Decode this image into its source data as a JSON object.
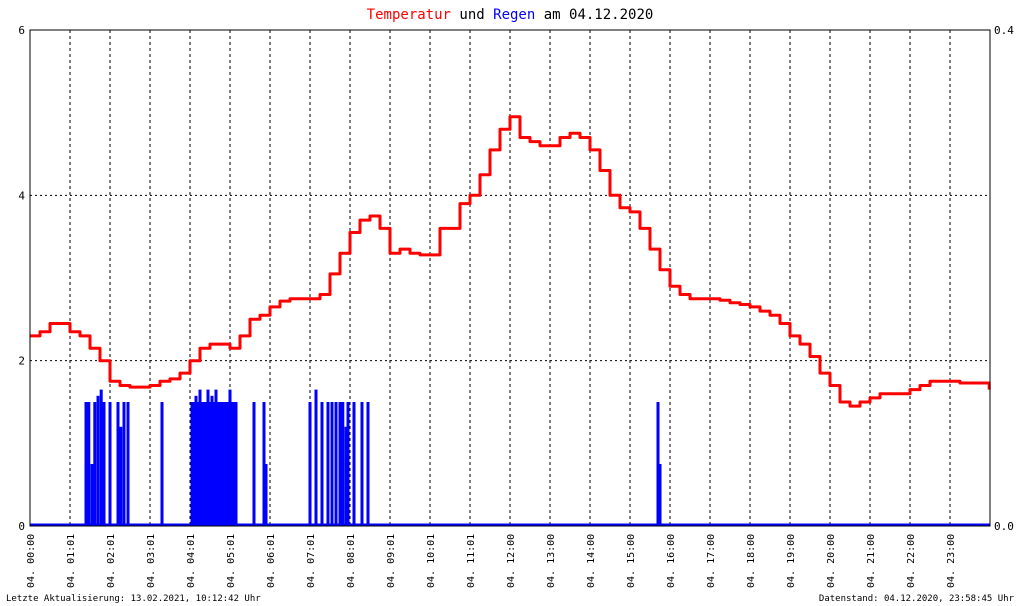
{
  "header": {
    "title_part1": "Temperatur",
    "title_part2": "und",
    "title_part3": "Regen",
    "title_part4": "am 04.12.2020",
    "color_temperature": "#ff0000",
    "color_rain": "#0000ff"
  },
  "footer": {
    "left": "Letzte Aktualisierung: 13.02.2021, 10:12:42 Uhr",
    "right": "Datenstand: 04.12.2020, 23:58:45 Uhr"
  },
  "chart_data": {
    "type": "line",
    "title": "Temperatur und Regen am 04.12.2020",
    "grid": true,
    "x_range": [
      0,
      24
    ],
    "x_tick_labels": [
      "04. 00:00",
      "04. 01:01",
      "04. 02:01",
      "04. 03:01",
      "04. 04:01",
      "04. 05:01",
      "04. 06:01",
      "04. 07:01",
      "04. 08:01",
      "04. 09:01",
      "04. 10:01",
      "04. 11:01",
      "04. 12:00",
      "04. 13:00",
      "04. 14:00",
      "04. 15:00",
      "04. 16:00",
      "04. 17:00",
      "04. 18:00",
      "04. 19:00",
      "04. 20:00",
      "04. 21:00",
      "04. 22:00",
      "04. 23:00"
    ],
    "y_left": {
      "range": [
        0,
        6
      ],
      "tick_labels": [
        "0",
        "2",
        "4",
        "6"
      ]
    },
    "y_right": {
      "range": [
        0,
        0.4
      ],
      "tick_labels": [
        "0.0",
        "0.4"
      ]
    },
    "series": [
      {
        "name": "Temperatur",
        "color": "#ff0000",
        "axis": "left",
        "x": [
          0.0,
          0.25,
          0.5,
          0.75,
          1.0,
          1.25,
          1.5,
          1.75,
          2.0,
          2.25,
          2.5,
          2.75,
          3.0,
          3.25,
          3.5,
          3.75,
          4.0,
          4.25,
          4.5,
          4.75,
          5.0,
          5.25,
          5.5,
          5.75,
          6.0,
          6.25,
          6.5,
          6.75,
          7.0,
          7.25,
          7.5,
          7.75,
          8.0,
          8.25,
          8.5,
          8.75,
          9.0,
          9.25,
          9.5,
          9.75,
          10.0,
          10.25,
          10.5,
          10.75,
          11.0,
          11.25,
          11.5,
          11.75,
          12.0,
          12.25,
          12.5,
          12.75,
          13.0,
          13.25,
          13.5,
          13.75,
          14.0,
          14.25,
          14.5,
          14.75,
          15.0,
          15.25,
          15.5,
          15.75,
          16.0,
          16.25,
          16.5,
          16.75,
          17.0,
          17.25,
          17.5,
          17.75,
          18.0,
          18.25,
          18.5,
          18.75,
          19.0,
          19.25,
          19.5,
          19.75,
          20.0,
          20.25,
          20.5,
          20.75,
          21.0,
          21.25,
          21.5,
          21.75,
          22.0,
          22.25,
          22.5,
          22.75,
          23.0,
          23.25,
          23.5,
          23.75,
          23.98
        ],
        "values": [
          2.3,
          2.35,
          2.45,
          2.45,
          2.35,
          2.3,
          2.15,
          2.0,
          1.75,
          1.7,
          1.68,
          1.68,
          1.7,
          1.75,
          1.78,
          1.85,
          2.0,
          2.15,
          2.2,
          2.2,
          2.15,
          2.3,
          2.5,
          2.55,
          2.65,
          2.72,
          2.75,
          2.75,
          2.75,
          2.8,
          3.05,
          3.3,
          3.55,
          3.7,
          3.75,
          3.6,
          3.3,
          3.35,
          3.3,
          3.28,
          3.28,
          3.6,
          3.6,
          3.9,
          4.0,
          4.25,
          4.55,
          4.8,
          4.95,
          4.7,
          4.65,
          4.6,
          4.6,
          4.7,
          4.75,
          4.7,
          4.55,
          4.3,
          4.0,
          3.85,
          3.8,
          3.6,
          3.35,
          3.1,
          2.9,
          2.8,
          2.75,
          2.75,
          2.75,
          2.73,
          2.7,
          2.68,
          2.65,
          2.6,
          2.55,
          2.45,
          2.3,
          2.2,
          2.05,
          1.85,
          1.7,
          1.5,
          1.45,
          1.5,
          1.55,
          1.6,
          1.6,
          1.6,
          1.65,
          1.7,
          1.75,
          1.75,
          1.75,
          1.73,
          1.73,
          1.73,
          1.65
        ]
      },
      {
        "name": "Regen",
        "color": "#0000ff",
        "axis": "right",
        "type": "bar",
        "x": [
          1.4,
          1.47,
          1.55,
          1.62,
          1.7,
          1.78,
          1.85,
          2.0,
          2.2,
          2.27,
          2.35,
          2.45,
          3.3,
          4.05,
          4.1,
          4.15,
          4.2,
          4.25,
          4.3,
          4.35,
          4.4,
          4.45,
          4.5,
          4.55,
          4.6,
          4.65,
          4.7,
          4.75,
          4.8,
          4.85,
          4.9,
          4.95,
          5.0,
          5.05,
          5.1,
          5.15,
          5.6,
          5.85,
          5.9,
          7.0,
          7.15,
          7.3,
          7.45,
          7.55,
          7.65,
          7.75,
          7.82,
          7.9,
          7.95,
          8.1,
          8.3,
          8.45,
          15.7,
          15.75
        ],
        "values": [
          0.1,
          0.1,
          0.05,
          0.1,
          0.105,
          0.11,
          0.1,
          0.1,
          0.1,
          0.08,
          0.1,
          0.1,
          0.1,
          0.1,
          0.1,
          0.105,
          0.1,
          0.11,
          0.1,
          0.1,
          0.1,
          0.11,
          0.1,
          0.105,
          0.1,
          0.11,
          0.1,
          0.1,
          0.1,
          0.1,
          0.1,
          0.1,
          0.11,
          0.1,
          0.1,
          0.1,
          0.1,
          0.1,
          0.05,
          0.1,
          0.11,
          0.1,
          0.1,
          0.1,
          0.1,
          0.1,
          0.1,
          0.08,
          0.1,
          0.1,
          0.1,
          0.1,
          0.1,
          0.05
        ]
      }
    ]
  }
}
